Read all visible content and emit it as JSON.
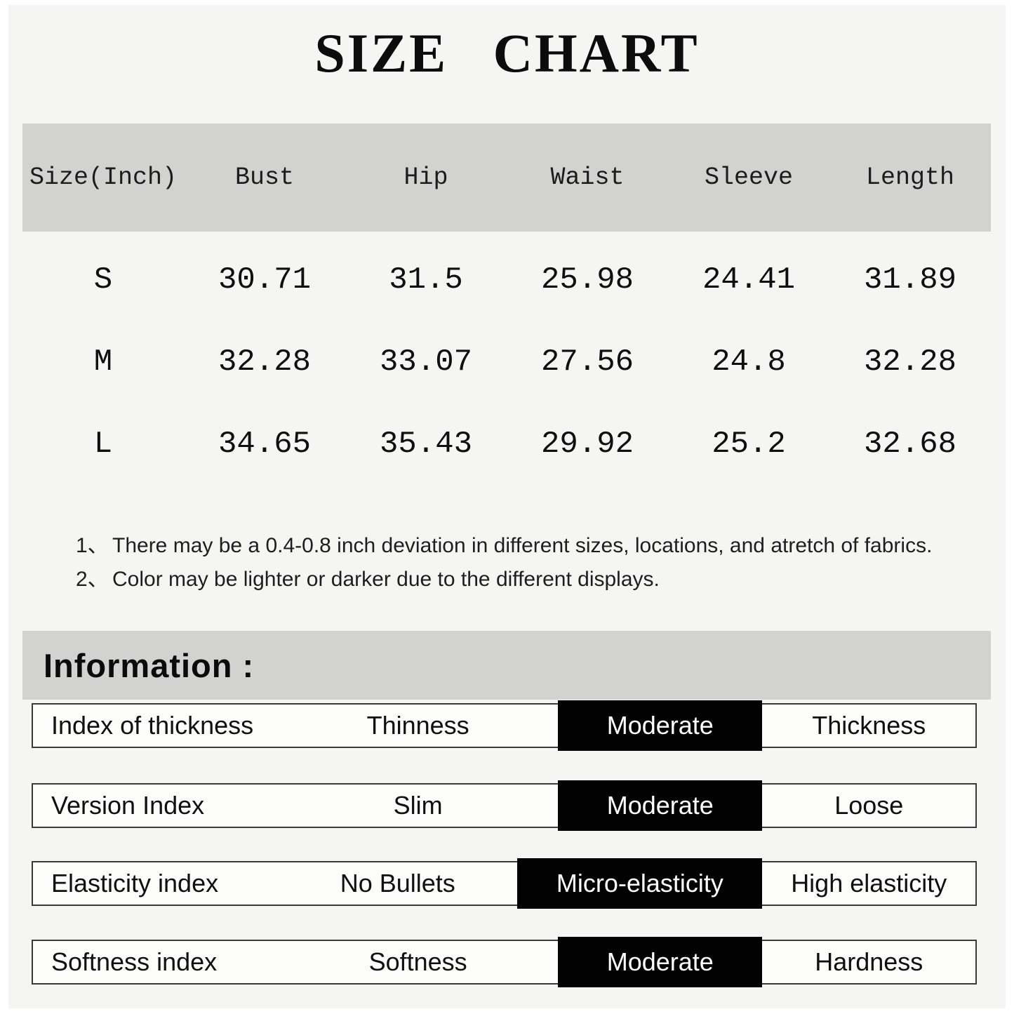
{
  "title": "SIZE CHART",
  "size_table": {
    "unit": "Inch",
    "headers": [
      "Size(Inch)",
      "Bust",
      "Hip",
      "Waist",
      "Sleeve",
      "Length"
    ],
    "rows": [
      [
        "S",
        "30.71",
        "31.5",
        "25.98",
        "24.41",
        "31.89"
      ],
      [
        "M",
        "32.28",
        "33.07",
        "27.56",
        "24.8",
        "32.28"
      ],
      [
        "L",
        "34.65",
        "35.43",
        "29.92",
        "25.2",
        "32.68"
      ]
    ]
  },
  "notes": [
    {
      "num": "1、",
      "text": "There may be a 0.4-0.8 inch deviation in different sizes, locations, and atretch of fabrics."
    },
    {
      "num": "2、",
      "text": "Color may be lighter or darker due to the different displays."
    }
  ],
  "information": {
    "heading": "Information :",
    "rows": [
      {
        "label": "Index of thickness",
        "options": [
          "Thinness",
          "Moderate",
          "Thickness"
        ],
        "selected_index": 1,
        "selected": "Moderate"
      },
      {
        "label": "Version Index",
        "options": [
          "Slim",
          "Moderate",
          "Loose"
        ],
        "selected_index": 1,
        "selected": "Moderate"
      },
      {
        "label": "Elasticity index",
        "options": [
          "No Bullets",
          "Micro-elasticity",
          "High elasticity"
        ],
        "selected_index": 1,
        "selected": "Micro-elasticity"
      },
      {
        "label": "Softness index",
        "options": [
          "Softness",
          "Moderate",
          "Hardness"
        ],
        "selected_index": 1,
        "selected": "Moderate"
      }
    ]
  },
  "colors": {
    "page_background": "#f5f5f3",
    "band_gray": "#d2d2d1",
    "highlight_black": "#020202",
    "highlight_text": "#ffffff",
    "text": "#161616"
  }
}
